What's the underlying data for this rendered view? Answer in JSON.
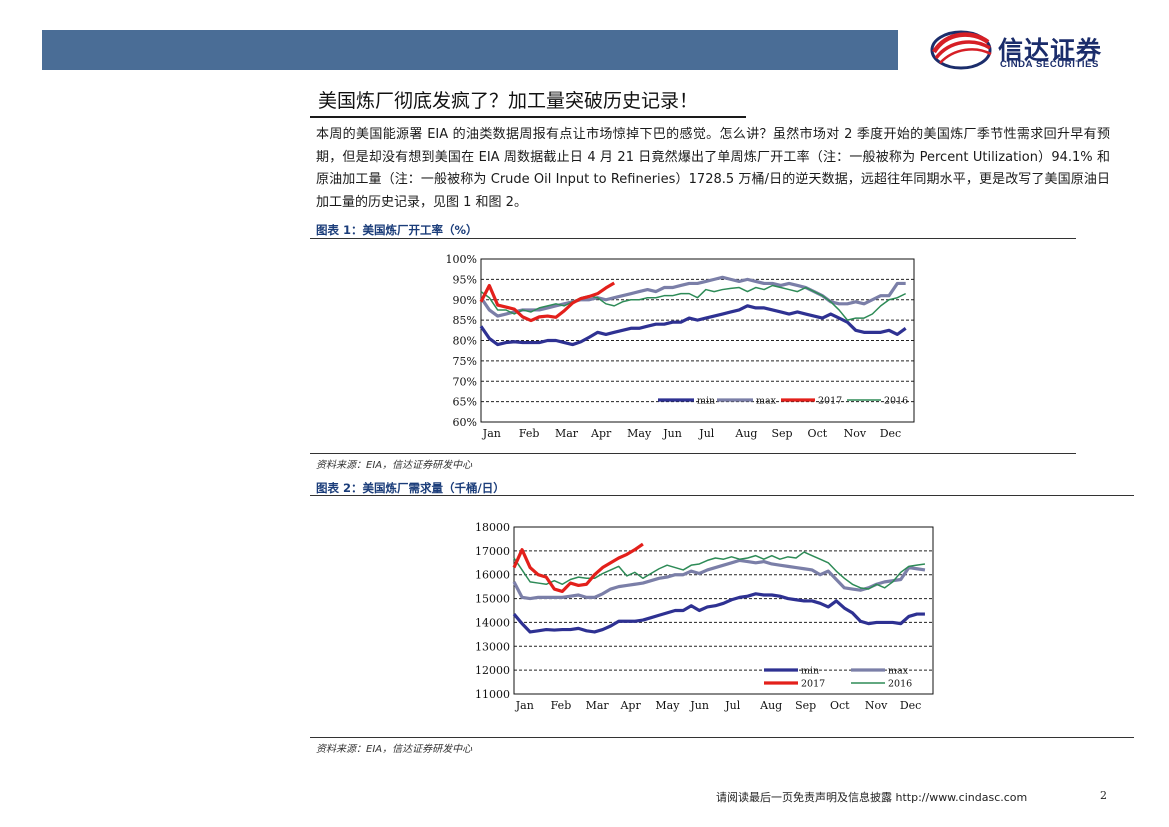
{
  "brand": {
    "name_cn": "信达证券",
    "name_en": "CINDA SECURITIES"
  },
  "title": "美国炼厂彻底发疯了？加工量突破历史记录！",
  "paragraph": "本周的美国能源署 EIA 的油类数据周报有点让市场惊掉下巴的感觉。怎么讲？虽然市场对 2 季度开始的美国炼厂季节性需求回升早有预期，但是却没有想到美国在 EIA 周数据截止日 4 月 21 日竟然爆出了单周炼厂开工率（注：一般被称为 Percent Utilization）94.1% 和原油加工量（注：一般被称为 Crude Oil Input to Refineries）1728.5 万桶/日的逆天数据，远超往年同期水平，更是改写了美国原油日加工量的历史记录，见图 1 和图 2。",
  "figure1": {
    "caption": "图表 1：美国炼厂开工率（%）",
    "source": "资料来源：EIA，信达证券研发中心"
  },
  "figure2": {
    "caption": "图表 2：美国炼厂需求量（千桶/日）",
    "source": "资料来源：EIA，信达证券研发中心"
  },
  "footer": {
    "disclaimer": "请阅读最后一页免责声明及信息披露  http://www.cindasc.com",
    "page_number": "2"
  },
  "chart_data": [
    {
      "type": "line",
      "title": "",
      "xlabel": "",
      "ylabel": "",
      "x_tick_labels": [
        "Jan",
        "Feb",
        "Mar",
        "Apr",
        "May",
        "Jun",
        "Jul",
        "Aug",
        "Sep",
        "Oct",
        "Nov",
        "Dec"
      ],
      "y_tick_labels": [
        "100%",
        "95%",
        "90%",
        "85%",
        "80%",
        "75%",
        "70%",
        "65%",
        "60%"
      ],
      "ylim": [
        60,
        100
      ],
      "xlim": [
        0,
        52
      ],
      "grid": true,
      "legend_position": "bottom-right",
      "series": [
        {
          "name": "min",
          "color": "#2e3192",
          "width": 3.2,
          "x": [
            0,
            1,
            2,
            3,
            4,
            5,
            6,
            7,
            8,
            9,
            10,
            11,
            12,
            13,
            14,
            15,
            16,
            17,
            18,
            19,
            20,
            21,
            22,
            23,
            24,
            25,
            26,
            27,
            28,
            29,
            30,
            31,
            32,
            33,
            34,
            35,
            36,
            37,
            38,
            39,
            40,
            41,
            42,
            43,
            44,
            45,
            46,
            47,
            48,
            49,
            50,
            51
          ],
          "values": [
            83.5,
            80.5,
            79,
            79.5,
            79.7,
            79.5,
            79.5,
            79.5,
            80,
            80,
            79.5,
            79,
            79.7,
            80.8,
            82,
            81.5,
            82,
            82.5,
            83,
            83,
            83.5,
            84,
            84,
            84.5,
            84.5,
            85.5,
            85,
            85.5,
            86,
            86.5,
            87,
            87.5,
            88.5,
            88,
            88,
            87.5,
            87,
            86.5,
            87,
            86.5,
            86,
            85.5,
            86.5,
            85.5,
            84.5,
            82.5,
            82,
            82,
            82,
            82.5,
            81.5,
            83
          ]
        },
        {
          "name": "max",
          "color": "#7b7fa8",
          "width": 3.2,
          "x": [
            0,
            1,
            2,
            3,
            4,
            5,
            6,
            7,
            8,
            9,
            10,
            11,
            12,
            13,
            14,
            15,
            16,
            17,
            18,
            19,
            20,
            21,
            22,
            23,
            24,
            25,
            26,
            27,
            28,
            29,
            30,
            31,
            32,
            33,
            34,
            35,
            36,
            37,
            38,
            39,
            40,
            41,
            42,
            43,
            44,
            45,
            46,
            47,
            48,
            49,
            50,
            51
          ],
          "values": [
            90.5,
            87.5,
            86,
            86.5,
            87,
            87.5,
            87.5,
            87.5,
            88,
            88.5,
            89,
            89.5,
            90,
            90,
            90.5,
            90,
            90.5,
            91,
            91.5,
            92,
            92.5,
            92,
            93,
            93,
            93.5,
            94,
            94,
            94.5,
            95,
            95.5,
            95,
            94.5,
            95,
            94.5,
            94,
            94,
            93.5,
            94,
            93.5,
            93,
            92,
            91,
            89.5,
            89,
            89,
            89.5,
            89,
            90,
            91,
            91,
            94,
            94
          ]
        },
        {
          "name": "2017",
          "color": "#e3201b",
          "width": 3.2,
          "x": [
            0,
            1,
            2,
            3,
            4,
            5,
            6,
            7,
            8,
            9,
            10,
            11,
            12,
            13,
            14,
            15,
            16
          ],
          "values": [
            89.5,
            93.5,
            88.7,
            88.2,
            87.7,
            85.8,
            84.9,
            85.8,
            86,
            85.7,
            87.3,
            89.2,
            90.3,
            90.8,
            91.5,
            92.9,
            94.1
          ]
        },
        {
          "name": "2016",
          "color": "#2e8b57",
          "width": 1.5,
          "x": [
            0,
            1,
            2,
            3,
            4,
            5,
            6,
            7,
            8,
            9,
            10,
            11,
            12,
            13,
            14,
            15,
            16,
            17,
            18,
            19,
            20,
            21,
            22,
            23,
            24,
            25,
            26,
            27,
            28,
            29,
            30,
            31,
            32,
            33,
            34,
            35,
            36,
            37,
            38,
            39,
            40,
            41,
            42,
            43,
            44,
            45,
            46,
            47,
            48,
            49,
            50,
            51
          ],
          "values": [
            92,
            90.5,
            87.5,
            87.5,
            86.5,
            87.5,
            87,
            88,
            88.5,
            89,
            88.5,
            89.5,
            90.5,
            91,
            90.5,
            89,
            88.5,
            89.5,
            90,
            90,
            90.5,
            90.5,
            91,
            91,
            91.5,
            91.5,
            90.5,
            92.5,
            92,
            92.5,
            92.8,
            93,
            92,
            93,
            92.5,
            93.5,
            93,
            92.5,
            92,
            93,
            92,
            91,
            89.5,
            87.5,
            85,
            85.5,
            85.5,
            86.5,
            88.5,
            90,
            90.5,
            91.5
          ]
        }
      ]
    },
    {
      "type": "line",
      "title": "",
      "xlabel": "",
      "ylabel": "",
      "x_tick_labels": [
        "Jan",
        "Feb",
        "Mar",
        "Apr",
        "May",
        "Jun",
        "Jul",
        "Aug",
        "Sep",
        "Oct",
        "Nov",
        "Dec"
      ],
      "y_tick_labels": [
        "18000",
        "17000",
        "16000",
        "15000",
        "14000",
        "13000",
        "12000",
        "11000"
      ],
      "ylim": [
        11000,
        18000
      ],
      "xlim": [
        0,
        52
      ],
      "grid": true,
      "legend_position": "bottom-right",
      "series": [
        {
          "name": "min",
          "color": "#2e3192",
          "width": 3.2,
          "x": [
            0,
            1,
            2,
            3,
            4,
            5,
            6,
            7,
            8,
            9,
            10,
            11,
            12,
            13,
            14,
            15,
            16,
            17,
            18,
            19,
            20,
            21,
            22,
            23,
            24,
            25,
            26,
            27,
            28,
            29,
            30,
            31,
            32,
            33,
            34,
            35,
            36,
            37,
            38,
            39,
            40,
            41,
            42,
            43,
            44,
            45,
            46,
            47,
            48,
            49,
            50,
            51
          ],
          "values": [
            14350,
            13950,
            13600,
            13650,
            13700,
            13680,
            13700,
            13700,
            13750,
            13650,
            13600,
            13700,
            13850,
            14050,
            14050,
            14050,
            14100,
            14200,
            14300,
            14400,
            14500,
            14500,
            14700,
            14500,
            14650,
            14700,
            14800,
            14950,
            15050,
            15100,
            15200,
            15150,
            15150,
            15100,
            15000,
            14950,
            14900,
            14900,
            14800,
            14650,
            14900,
            14600,
            14400,
            14050,
            13950,
            14000,
            14000,
            14000,
            13950,
            14250,
            14350,
            14350
          ]
        },
        {
          "name": "max",
          "color": "#7b7fa8",
          "width": 3.2,
          "x": [
            0,
            1,
            2,
            3,
            4,
            5,
            6,
            7,
            8,
            9,
            10,
            11,
            12,
            13,
            14,
            15,
            16,
            17,
            18,
            19,
            20,
            21,
            22,
            23,
            24,
            25,
            26,
            27,
            28,
            29,
            30,
            31,
            32,
            33,
            34,
            35,
            36,
            37,
            38,
            39,
            40,
            41,
            42,
            43,
            44,
            45,
            46,
            47,
            48,
            49,
            50,
            51
          ],
          "values": [
            15700,
            15050,
            15000,
            15050,
            15050,
            15050,
            15050,
            15100,
            15150,
            15050,
            15050,
            15200,
            15400,
            15500,
            15550,
            15600,
            15650,
            15750,
            15850,
            15900,
            16000,
            16000,
            16150,
            16050,
            16200,
            16300,
            16400,
            16500,
            16600,
            16550,
            16500,
            16550,
            16450,
            16400,
            16350,
            16300,
            16250,
            16200,
            16000,
            16150,
            15800,
            15450,
            15400,
            15350,
            15450,
            15600,
            15700,
            15750,
            15800,
            16300,
            16250,
            16200
          ]
        },
        {
          "name": "2017",
          "color": "#e3201b",
          "width": 3.2,
          "x": [
            0,
            1,
            2,
            3,
            4,
            5,
            6,
            7,
            8,
            9,
            10,
            11,
            12,
            13,
            14,
            15,
            16
          ],
          "values": [
            16300,
            17050,
            16300,
            16000,
            15900,
            15400,
            15300,
            15650,
            15550,
            15600,
            16000,
            16300,
            16500,
            16700,
            16850,
            17050,
            17285
          ]
        },
        {
          "name": "2016",
          "color": "#2e8b57",
          "width": 1.5,
          "x": [
            0,
            1,
            2,
            3,
            4,
            5,
            6,
            7,
            8,
            9,
            10,
            11,
            12,
            13,
            14,
            15,
            16,
            17,
            18,
            19,
            20,
            21,
            22,
            23,
            24,
            25,
            26,
            27,
            28,
            29,
            30,
            31,
            32,
            33,
            34,
            35,
            36,
            37,
            38,
            39,
            40,
            41,
            42,
            43,
            44,
            45,
            46,
            47,
            48,
            49,
            50,
            51
          ],
          "values": [
            16700,
            16200,
            15700,
            15650,
            15600,
            15750,
            15600,
            15800,
            15900,
            15850,
            15850,
            16050,
            16200,
            16350,
            15950,
            16100,
            15850,
            16050,
            16250,
            16400,
            16300,
            16200,
            16400,
            16450,
            16600,
            16700,
            16650,
            16750,
            16650,
            16700,
            16800,
            16650,
            16800,
            16650,
            16750,
            16700,
            16950,
            16800,
            16650,
            16500,
            16150,
            15850,
            15600,
            15450,
            15400,
            15600,
            15450,
            15700,
            16100,
            16350,
            16400,
            16450
          ]
        }
      ]
    }
  ]
}
